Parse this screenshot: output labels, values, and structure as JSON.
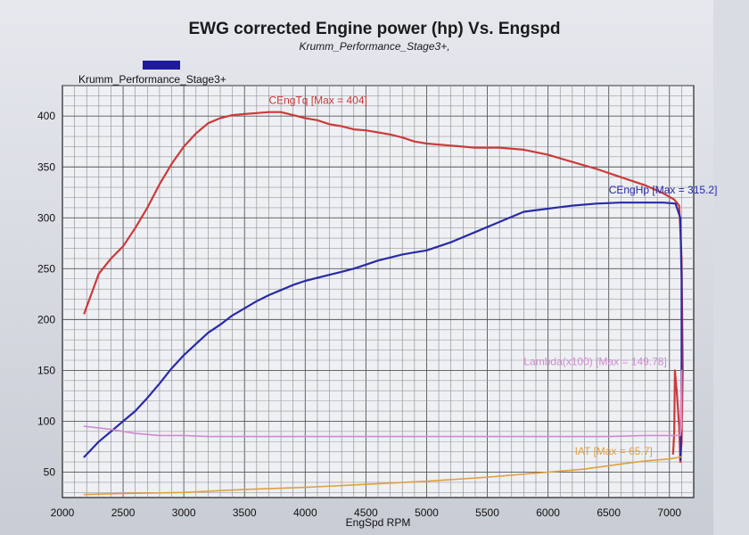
{
  "chart_data": {
    "type": "line",
    "title": "EWG corrected Engine power (hp) Vs. Engspd",
    "subtitle": "Krumm_Performance_Stage3+,",
    "legend": {
      "label": "Krumm_Performance_Stage3+",
      "placement": "top-left",
      "color": "#1f1c9c"
    },
    "xlabel": "EngSpd RPM",
    "ylabel": "",
    "xlim": [
      2000,
      7200
    ],
    "ylim": [
      25,
      430
    ],
    "xticks": [
      2000,
      2500,
      3000,
      3500,
      4000,
      4500,
      5000,
      5500,
      6000,
      6500,
      7000
    ],
    "yticks": [
      50,
      100,
      150,
      200,
      250,
      300,
      350,
      400
    ],
    "grid": true,
    "series": [
      {
        "key": "torque",
        "color": "#cc3a3a",
        "annotation": "CEngTq [Max = 404]",
        "annotation_at": [
          3700,
          412
        ],
        "points": [
          [
            2180,
            206
          ],
          [
            2300,
            245
          ],
          [
            2400,
            260
          ],
          [
            2500,
            272
          ],
          [
            2600,
            290
          ],
          [
            2700,
            310
          ],
          [
            2800,
            333
          ],
          [
            2900,
            353
          ],
          [
            3000,
            370
          ],
          [
            3100,
            383
          ],
          [
            3200,
            393
          ],
          [
            3300,
            398
          ],
          [
            3400,
            401
          ],
          [
            3500,
            402
          ],
          [
            3600,
            403
          ],
          [
            3700,
            404
          ],
          [
            3800,
            404
          ],
          [
            3900,
            401
          ],
          [
            4000,
            398
          ],
          [
            4100,
            396
          ],
          [
            4200,
            392
          ],
          [
            4300,
            390
          ],
          [
            4400,
            387
          ],
          [
            4500,
            386
          ],
          [
            4600,
            384
          ],
          [
            4700,
            382
          ],
          [
            4800,
            379
          ],
          [
            4900,
            375
          ],
          [
            5000,
            373
          ],
          [
            5200,
            371
          ],
          [
            5400,
            369
          ],
          [
            5600,
            369
          ],
          [
            5800,
            367
          ],
          [
            6000,
            362
          ],
          [
            6200,
            355
          ],
          [
            6400,
            348
          ],
          [
            6600,
            340
          ],
          [
            6800,
            332
          ],
          [
            6950,
            324
          ],
          [
            7040,
            318
          ],
          [
            7080,
            312
          ],
          [
            7100,
            260
          ],
          [
            7110,
            150
          ],
          [
            7100,
            80
          ],
          [
            7090,
            60
          ],
          [
            7080,
            95
          ],
          [
            7060,
            130
          ],
          [
            7045,
            150
          ],
          [
            7040,
            90
          ],
          [
            7030,
            68
          ]
        ]
      },
      {
        "key": "power",
        "color": "#2a2aa8",
        "annotation": "CEngHp [Max = 315.2]",
        "annotation_at": [
          6500,
          324
        ],
        "points": [
          [
            2180,
            65
          ],
          [
            2300,
            80
          ],
          [
            2400,
            90
          ],
          [
            2500,
            100
          ],
          [
            2600,
            110
          ],
          [
            2700,
            123
          ],
          [
            2800,
            137
          ],
          [
            2900,
            152
          ],
          [
            3000,
            165
          ],
          [
            3100,
            176
          ],
          [
            3200,
            187
          ],
          [
            3300,
            195
          ],
          [
            3400,
            204
          ],
          [
            3500,
            211
          ],
          [
            3600,
            218
          ],
          [
            3700,
            224
          ],
          [
            3800,
            229
          ],
          [
            3900,
            234
          ],
          [
            4000,
            238
          ],
          [
            4100,
            241
          ],
          [
            4200,
            244
          ],
          [
            4300,
            247
          ],
          [
            4400,
            250
          ],
          [
            4500,
            254
          ],
          [
            4600,
            258
          ],
          [
            4700,
            261
          ],
          [
            4800,
            264
          ],
          [
            4900,
            266
          ],
          [
            5000,
            268
          ],
          [
            5200,
            276
          ],
          [
            5400,
            286
          ],
          [
            5600,
            296
          ],
          [
            5800,
            306
          ],
          [
            6000,
            309
          ],
          [
            6200,
            312
          ],
          [
            6400,
            314
          ],
          [
            6600,
            315
          ],
          [
            6800,
            315
          ],
          [
            6950,
            315
          ],
          [
            7050,
            314
          ],
          [
            7090,
            300
          ],
          [
            7100,
            240
          ],
          [
            7100,
            160
          ],
          [
            7095,
            80
          ],
          [
            7090,
            62
          ]
        ]
      },
      {
        "key": "lambda",
        "color": "#d08ad0",
        "annotation": "Lambda(x100) [Max = 149.78]",
        "annotation_at": [
          5800,
          155
        ],
        "points": [
          [
            2180,
            95
          ],
          [
            2400,
            92
          ],
          [
            2600,
            88
          ],
          [
            2800,
            86
          ],
          [
            3000,
            86
          ],
          [
            3200,
            85
          ],
          [
            3500,
            85
          ],
          [
            4000,
            85
          ],
          [
            4500,
            85
          ],
          [
            5000,
            85
          ],
          [
            5500,
            85
          ],
          [
            6000,
            85
          ],
          [
            6500,
            85
          ],
          [
            6800,
            86
          ],
          [
            7000,
            86
          ],
          [
            7090,
            86
          ],
          [
            7100,
            95
          ],
          [
            7100,
            150
          ],
          [
            7095,
            120
          ],
          [
            7090,
            87
          ]
        ]
      },
      {
        "key": "iat",
        "color": "#e0a040",
        "annotation": "IAT  [Max = 65.7]",
        "annotation_at": [
          6220,
          67
        ],
        "points": [
          [
            2180,
            28
          ],
          [
            2500,
            29
          ],
          [
            3000,
            30
          ],
          [
            3500,
            33
          ],
          [
            4000,
            35
          ],
          [
            4500,
            38
          ],
          [
            5000,
            41
          ],
          [
            5500,
            45
          ],
          [
            6000,
            50
          ],
          [
            6300,
            53
          ],
          [
            6600,
            58
          ],
          [
            6800,
            61
          ],
          [
            7000,
            63
          ],
          [
            7100,
            65
          ]
        ]
      }
    ]
  }
}
